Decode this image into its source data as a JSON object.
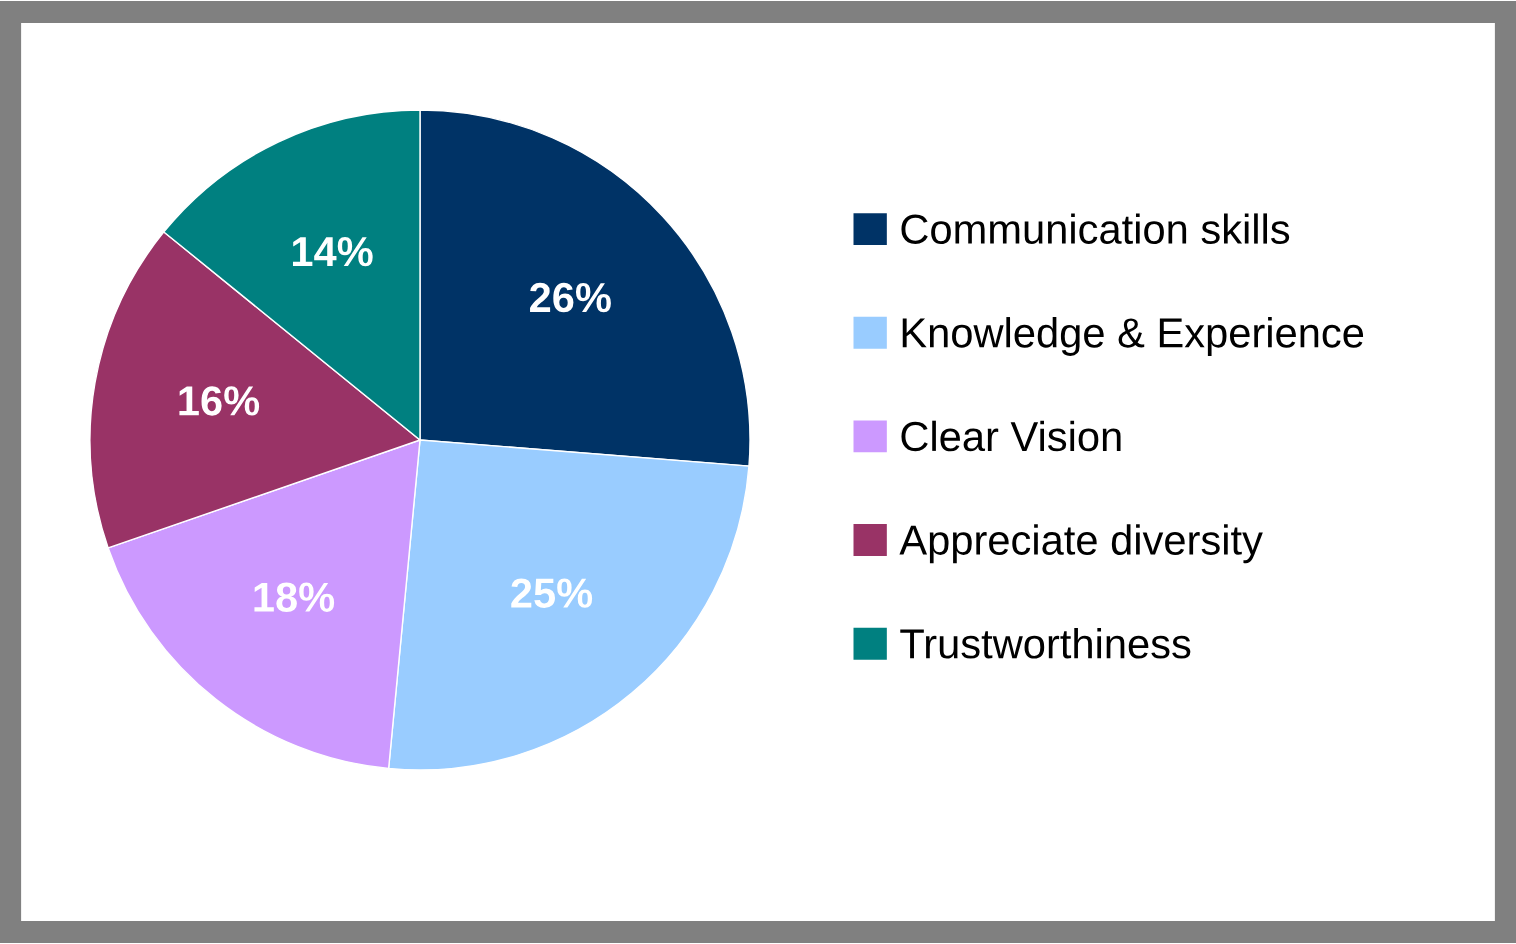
{
  "chart_data": {
    "type": "pie",
    "categories": [
      "Communication skills",
      "Knowledge & Experience",
      "Clear Vision",
      "Appreciate diversity",
      "Trustworthiness"
    ],
    "values": [
      26,
      25,
      18,
      16,
      14
    ],
    "value_labels": [
      "26%",
      "25%",
      "18%",
      "16%",
      "14%"
    ],
    "colors": [
      "#003366",
      "#99ccff",
      "#cc99ff",
      "#993366",
      "#008080"
    ],
    "legend": "right"
  }
}
